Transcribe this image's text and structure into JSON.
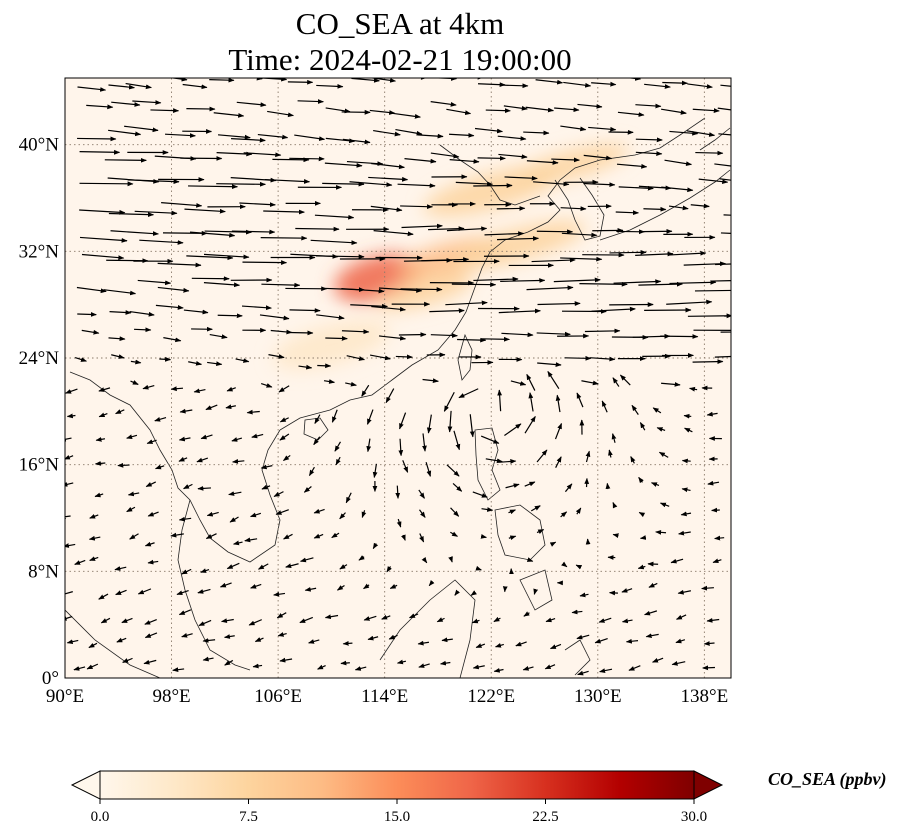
{
  "title": {
    "line1": "CO_SEA at 4km",
    "line2": "Time: 2024-02-21 19:00:00"
  },
  "map": {
    "extent": {
      "lon_min": 90,
      "lon_max": 140,
      "lat_min": 0,
      "lat_max": 45
    },
    "lat_ticks": [
      {
        "value": 0,
        "label": "0°"
      },
      {
        "value": 8,
        "label": "8°N"
      },
      {
        "value": 16,
        "label": "16°N"
      },
      {
        "value": 24,
        "label": "24°N"
      },
      {
        "value": 32,
        "label": "32°N"
      },
      {
        "value": 40,
        "label": "40°N"
      }
    ],
    "lon_ticks": [
      {
        "value": 90,
        "label": "90°E"
      },
      {
        "value": 98,
        "label": "98°E"
      },
      {
        "value": 106,
        "label": "106°E"
      },
      {
        "value": 114,
        "label": "114°E"
      },
      {
        "value": 122,
        "label": "122°E"
      },
      {
        "value": 130,
        "label": "130°E"
      },
      {
        "value": 138,
        "label": "138°E"
      }
    ],
    "gridlines": "dotted",
    "background_color": "#fff5eb"
  },
  "colorbar": {
    "label": "CO_SEA (ppbv)",
    "min": 0.0,
    "max": 30.0,
    "ticks": [
      "0.0",
      "7.5",
      "15.0",
      "22.5",
      "30.0"
    ],
    "colormap": "OrRd",
    "stops": [
      "#fff7ec",
      "#fee8c8",
      "#fdd49e",
      "#fdbb84",
      "#fc8d59",
      "#ef6548",
      "#d7301f",
      "#b30000",
      "#7f0000"
    ],
    "extend": "both"
  },
  "concentration_plumes": [
    {
      "lon": 113.5,
      "lat": 30.0,
      "value": 18
    },
    {
      "lon": 119,
      "lat": 31.5,
      "value": 12
    },
    {
      "lon": 124,
      "lat": 32.5,
      "value": 9
    },
    {
      "lon": 122,
      "lat": 36.5,
      "value": 8
    },
    {
      "lon": 128,
      "lat": 38.5,
      "value": 7
    },
    {
      "lon": 117,
      "lat": 29,
      "value": 6
    },
    {
      "lon": 110,
      "lat": 25,
      "value": 3
    }
  ]
}
